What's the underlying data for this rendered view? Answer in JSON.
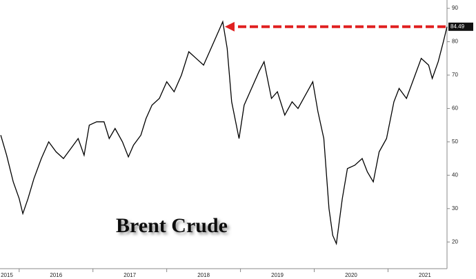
{
  "chart_data": {
    "type": "line",
    "annotation": "Brent Crude",
    "x": [
      2015.75,
      2015.83,
      2015.92,
      2016.0,
      2016.05,
      2016.12,
      2016.2,
      2016.3,
      2016.4,
      2016.5,
      2016.6,
      2016.7,
      2016.8,
      2016.88,
      2016.95,
      2017.05,
      2017.15,
      2017.22,
      2017.3,
      2017.4,
      2017.48,
      2017.55,
      2017.65,
      2017.72,
      2017.8,
      2017.9,
      2018.0,
      2018.1,
      2018.2,
      2018.3,
      2018.4,
      2018.5,
      2018.58,
      2018.68,
      2018.76,
      2018.82,
      2018.88,
      2018.98,
      2019.05,
      2019.15,
      2019.25,
      2019.32,
      2019.42,
      2019.5,
      2019.6,
      2019.7,
      2019.78,
      2019.88,
      2019.98,
      2020.05,
      2020.13,
      2020.2,
      2020.25,
      2020.3,
      2020.38,
      2020.45,
      2020.55,
      2020.65,
      2020.72,
      2020.8,
      2020.88,
      2020.98,
      2021.08,
      2021.15,
      2021.25,
      2021.35,
      2021.45,
      2021.55,
      2021.6,
      2021.68,
      2021.75,
      2021.8
    ],
    "series": [
      {
        "color": "#000000",
        "values": [
          52,
          46,
          38,
          33,
          28.5,
          33,
          39,
          45,
          50,
          47,
          45,
          48,
          51,
          46,
          55,
          56,
          56,
          51,
          54,
          50,
          45.5,
          49,
          52,
          57,
          61,
          63,
          68,
          65,
          70,
          77,
          75,
          73,
          77,
          82,
          86,
          78,
          62,
          51,
          61,
          66,
          71,
          74,
          63,
          65,
          58,
          62,
          60,
          64,
          68,
          59,
          51,
          30,
          22,
          19.5,
          33,
          42,
          43,
          45,
          41,
          38,
          47,
          51,
          62,
          66,
          63,
          69,
          75,
          73,
          69,
          74,
          80,
          84.49
        ]
      }
    ],
    "xlim": [
      2015.74,
      2021.8
    ],
    "xticks": [
      2015,
      2016,
      2017,
      2018,
      2019,
      2020,
      2021
    ],
    "ylim": [
      12,
      92.5
    ],
    "yticks": [
      20,
      30,
      40,
      50,
      60,
      70,
      80,
      90
    ],
    "grid": false
  }
}
